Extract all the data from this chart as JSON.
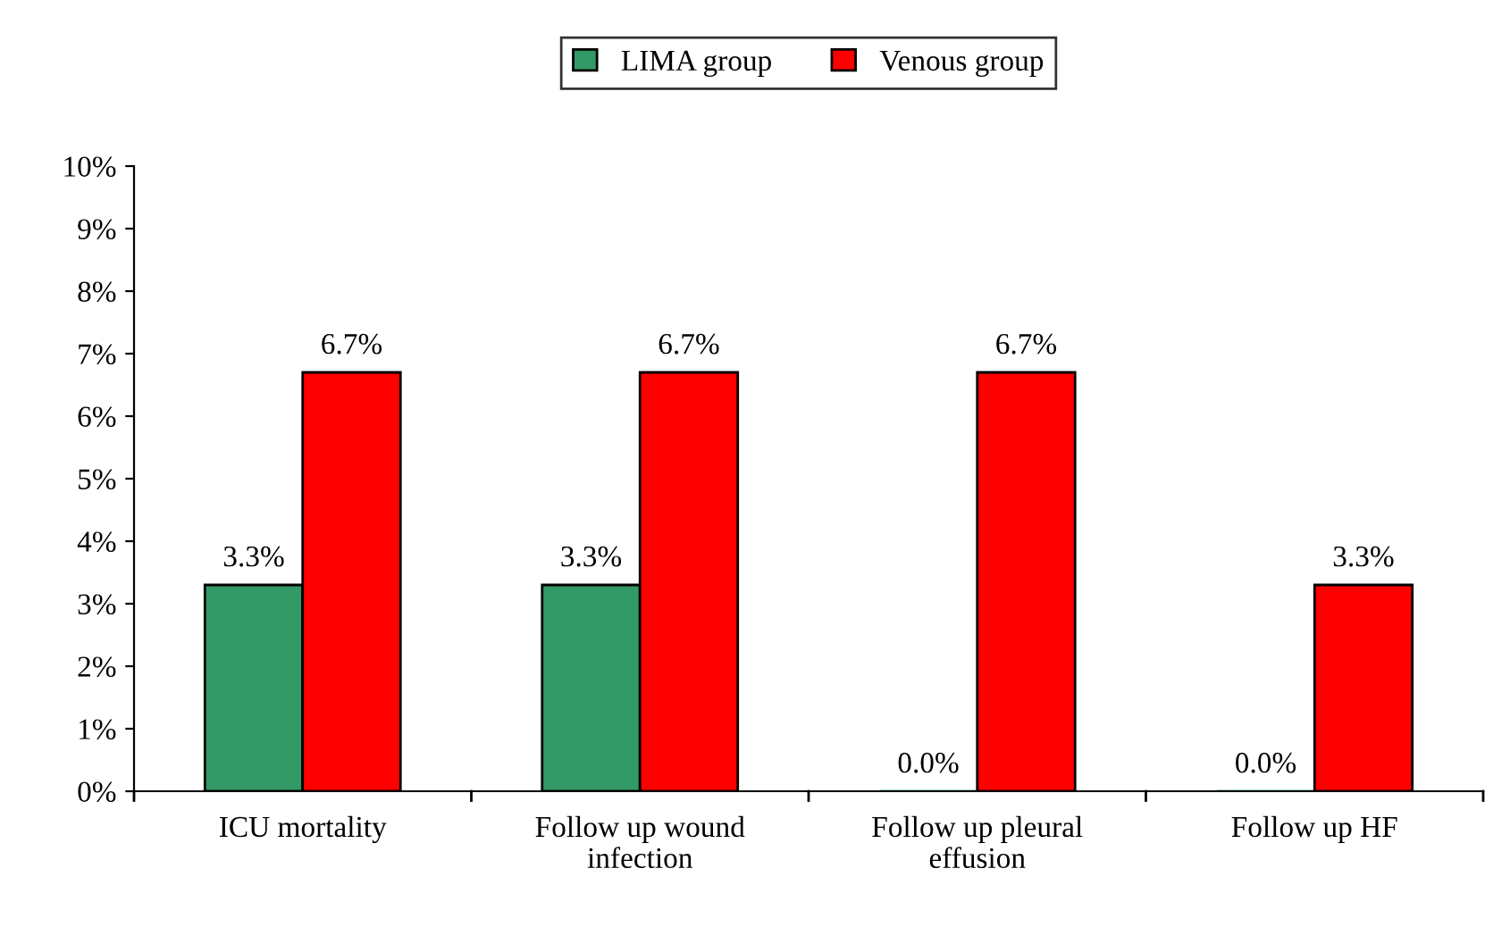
{
  "chart_data": {
    "type": "bar",
    "categories": [
      "ICU mortality",
      "Follow up wound\ninfection",
      "Follow up pleural\neffusion",
      "Follow up HF"
    ],
    "series": [
      {
        "name": "LIMA group",
        "color": "#339966",
        "values": [
          3.3,
          3.3,
          0.0,
          0.0
        ],
        "value_labels": [
          "3.3%",
          "3.3%",
          "0.0%",
          "0.0%"
        ]
      },
      {
        "name": "Venous group",
        "color": "#ff0000",
        "values": [
          6.7,
          6.7,
          6.7,
          3.3
        ],
        "value_labels": [
          "6.7%",
          "6.7%",
          "6.7%",
          "3.3%"
        ]
      }
    ],
    "ylim": [
      0,
      10
    ],
    "yticks": [
      {
        "value": 0,
        "label": "0%"
      },
      {
        "value": 1,
        "label": "1%"
      },
      {
        "value": 2,
        "label": "2%"
      },
      {
        "value": 3,
        "label": "3%"
      },
      {
        "value": 4,
        "label": "4%"
      },
      {
        "value": 5,
        "label": "5%"
      },
      {
        "value": 6,
        "label": "6%"
      },
      {
        "value": 7,
        "label": "7%"
      },
      {
        "value": 8,
        "label": "8%"
      },
      {
        "value": 9,
        "label": "9%"
      },
      {
        "value": 10,
        "label": "10%"
      }
    ],
    "grid": false,
    "legend": "top"
  }
}
